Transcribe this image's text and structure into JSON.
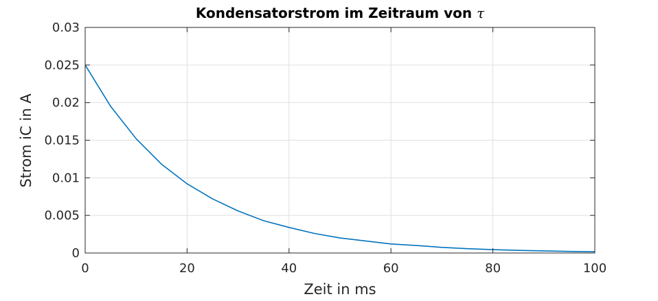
{
  "chart_data": {
    "type": "line",
    "title": "Kondensatorstrom im Zeitraum von",
    "title_symbol": "τ",
    "xlabel": "Zeit in ms",
    "ylabel": "Strom iC in A",
    "xlim": [
      0,
      100
    ],
    "ylim": [
      0,
      0.03
    ],
    "xticks": [
      0,
      20,
      40,
      60,
      80,
      100
    ],
    "xtick_labels": [
      "0",
      "20",
      "40",
      "60",
      "80",
      "100"
    ],
    "yticks": [
      0,
      0.005,
      0.01,
      0.015,
      0.02,
      0.025,
      0.03
    ],
    "ytick_labels": [
      "0",
      "0.005",
      "0.01",
      "0.015",
      "0.02",
      "0.025",
      "0.03"
    ],
    "grid": true,
    "series": [
      {
        "color": "#0072BD",
        "x": [
          0,
          5,
          10,
          15,
          20,
          25,
          30,
          35,
          40,
          45,
          50,
          55,
          60,
          65,
          70,
          75,
          80,
          85,
          90,
          95,
          100
        ],
        "y": [
          0.025,
          0.0195,
          0.0152,
          0.0118,
          0.0092,
          0.0072,
          0.0056,
          0.0043,
          0.0034,
          0.0026,
          0.002,
          0.0016,
          0.0012,
          0.001,
          0.00075,
          0.00058,
          0.00045,
          0.00035,
          0.00028,
          0.00021,
          0.00017
        ]
      }
    ]
  }
}
